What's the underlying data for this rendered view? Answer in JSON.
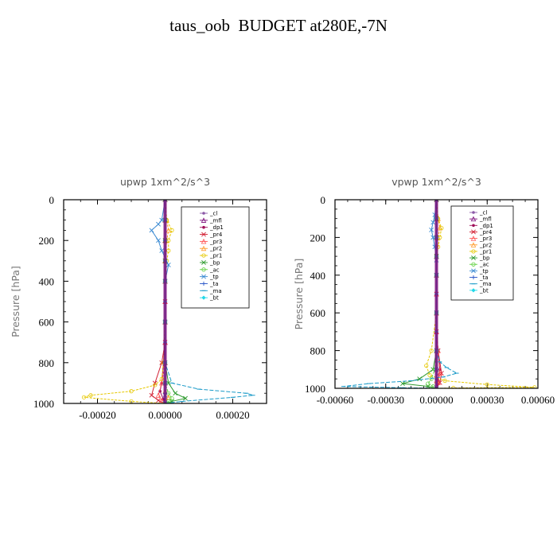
{
  "title": "taus_oob  BUDGET at280E,-7N",
  "chart_data": [
    {
      "type": "line",
      "title": "upwp   1xm^2/s^3",
      "ylabel": "Pressure [hPa]",
      "xlim": [
        -0.0003,
        0.0003
      ],
      "ylim": [
        1000,
        0
      ],
      "xticks": [
        -0.0002,
        0.0,
        0.0002
      ],
      "xtick_labels": [
        "-0.00020",
        "0.00000",
        "0.00020"
      ],
      "yticks": [
        0,
        200,
        400,
        600,
        800,
        1000
      ],
      "ytick_labels": [
        "0",
        "200",
        "400",
        "600",
        "800",
        "1000"
      ],
      "legend_position": "top-right",
      "grid": false,
      "series": [
        {
          "name": "_cl",
          "color": "#8c5aa8",
          "marker": "dot",
          "x": [
            0,
            0,
            0,
            0,
            0,
            0,
            0,
            0,
            0,
            0,
            0
          ],
          "y": [
            0,
            100,
            200,
            300,
            400,
            500,
            600,
            700,
            800,
            900,
            1000
          ]
        },
        {
          "name": "_mfl",
          "color": "#7a0a7a",
          "marker": "tri",
          "x": [
            0,
            0,
            0,
            0,
            0,
            0,
            0,
            0,
            0,
            0,
            0
          ],
          "y": [
            0,
            100,
            200,
            300,
            400,
            500,
            600,
            700,
            800,
            900,
            1000
          ]
        },
        {
          "name": "_dp1",
          "color": "#a0105a",
          "marker": "dot",
          "x": [
            0,
            0,
            0,
            0,
            0,
            0,
            0,
            0,
            -5e-06,
            -1e-05,
            -1.5e-05,
            -5e-06,
            0
          ],
          "y": [
            0,
            100,
            200,
            300,
            400,
            500,
            600,
            700,
            800,
            900,
            940,
            980,
            1000
          ]
        },
        {
          "name": "_pr4",
          "color": "#d21e32",
          "marker": "x",
          "x": [
            0,
            0,
            0,
            0,
            0,
            0,
            0,
            0,
            -1e-05,
            -3e-05,
            -4e-05,
            -2e-05,
            0
          ],
          "y": [
            0,
            100,
            200,
            300,
            400,
            500,
            600,
            700,
            800,
            900,
            960,
            985,
            1000
          ]
        },
        {
          "name": "_pr3",
          "color": "#ff5050",
          "marker": "tri",
          "x": [
            0,
            0,
            0,
            0,
            0,
            0,
            0,
            0,
            0,
            -1e-05,
            -2e-05,
            -1e-05,
            0
          ],
          "y": [
            0,
            100,
            200,
            300,
            400,
            500,
            600,
            700,
            800,
            900,
            960,
            985,
            1000
          ]
        },
        {
          "name": "_pr2",
          "color": "#ff9a28",
          "marker": "tri",
          "x": [
            0,
            5e-06,
            1e-05,
            5e-06,
            0,
            0,
            0,
            0,
            0,
            0,
            1e-05,
            0
          ],
          "y": [
            0,
            100,
            150,
            200,
            300,
            400,
            600,
            800,
            900,
            940,
            970,
            1000
          ]
        },
        {
          "name": "_pr1",
          "color": "#e6c800",
          "marker": "circ",
          "x": [
            0,
            5e-06,
            2e-05,
            1e-05,
            1e-05,
            5e-06,
            0,
            0,
            -5e-06,
            -1e-05,
            -3e-05,
            -0.0001,
            -0.00022,
            -0.00024,
            -0.0001,
            0
          ],
          "y": [
            0,
            100,
            150,
            200,
            250,
            300,
            400,
            600,
            800,
            880,
            910,
            940,
            960,
            970,
            990,
            1000
          ]
        },
        {
          "name": "_bp",
          "color": "#2e9a2e",
          "marker": "x",
          "x": [
            0,
            0,
            0,
            0,
            0,
            0,
            0,
            1e-05,
            3e-05,
            6e-05,
            2e-05,
            0
          ],
          "y": [
            0,
            100,
            200,
            300,
            400,
            600,
            800,
            900,
            950,
            975,
            990,
            1000
          ]
        },
        {
          "name": "_ac",
          "color": "#60d040",
          "marker": "circ",
          "x": [
            0,
            0,
            0,
            0,
            0,
            0,
            0,
            0,
            1e-05,
            2e-05,
            1e-05,
            0
          ],
          "y": [
            0,
            100,
            200,
            300,
            400,
            600,
            800,
            900,
            950,
            975,
            990,
            1000
          ]
        },
        {
          "name": "_tp",
          "color": "#3a8ad2",
          "marker": "x",
          "x": [
            0,
            -1e-05,
            -2e-05,
            -4e-05,
            -2e-05,
            -1e-05,
            1e-05,
            0,
            0,
            0,
            0,
            0,
            0
          ],
          "y": [
            0,
            100,
            120,
            150,
            200,
            250,
            320,
            400,
            600,
            800,
            900,
            960,
            1000
          ]
        },
        {
          "name": "_ta",
          "color": "#2a56c8",
          "marker": "plus",
          "x": [
            0,
            0,
            0,
            0,
            0,
            0,
            0,
            0,
            0,
            0,
            0,
            0
          ],
          "y": [
            0,
            100,
            200,
            300,
            400,
            500,
            600,
            700,
            800,
            900,
            950,
            1000
          ]
        },
        {
          "name": "_ma",
          "color": "#1a9ac8",
          "marker": "dash",
          "x": [
            0,
            0,
            0,
            0,
            0,
            0,
            0,
            2e-05,
            0.0001,
            0.00024,
            0.00026,
            0.0002,
            5e-05,
            0
          ],
          "y": [
            0,
            100,
            200,
            300,
            400,
            600,
            800,
            900,
            930,
            950,
            960,
            970,
            990,
            1000
          ]
        },
        {
          "name": "_bt",
          "color": "#22d8e8",
          "marker": "diamond",
          "x": [
            0,
            0,
            0,
            0,
            0,
            0,
            0,
            0,
            0,
            0,
            0
          ],
          "y": [
            0,
            100,
            200,
            300,
            400,
            500,
            600,
            700,
            800,
            900,
            1000
          ]
        }
      ]
    },
    {
      "type": "line",
      "title": "vpwp   1xm^2/s^3",
      "ylabel": "Pressure [hPa]",
      "xlim": [
        -0.0006,
        0.0006
      ],
      "ylim": [
        1000,
        0
      ],
      "xticks": [
        -0.0006,
        -0.0003,
        0.0,
        0.0003,
        0.0006
      ],
      "xtick_labels": [
        "-0.00060",
        "-0.00030",
        "0.00000",
        "0.00030",
        "0.00060"
      ],
      "yticks": [
        0,
        200,
        400,
        600,
        800,
        1000
      ],
      "ytick_labels": [
        "0",
        "200",
        "400",
        "600",
        "800",
        "1000"
      ],
      "legend_position": "top-right",
      "grid": false,
      "series": [
        {
          "name": "_cl",
          "color": "#8c5aa8",
          "marker": "dot",
          "x": [
            0,
            0,
            0,
            0,
            0,
            0,
            0,
            0,
            0,
            0,
            0
          ],
          "y": [
            0,
            100,
            200,
            300,
            400,
            500,
            600,
            700,
            800,
            900,
            1000
          ]
        },
        {
          "name": "_mfl",
          "color": "#7a0a7a",
          "marker": "tri",
          "x": [
            0,
            0,
            0,
            0,
            0,
            0,
            0,
            0,
            0,
            0,
            0
          ],
          "y": [
            0,
            100,
            200,
            300,
            400,
            500,
            600,
            700,
            800,
            900,
            1000
          ]
        },
        {
          "name": "_dp1",
          "color": "#a0105a",
          "marker": "dot",
          "x": [
            0,
            0,
            0,
            0,
            0,
            0,
            0,
            0,
            1e-05,
            2e-05,
            1e-05,
            0
          ],
          "y": [
            0,
            100,
            200,
            300,
            400,
            500,
            600,
            700,
            800,
            900,
            960,
            1000
          ]
        },
        {
          "name": "_pr4",
          "color": "#d21e32",
          "marker": "x",
          "x": [
            0,
            0,
            0,
            0,
            0,
            0,
            0,
            0,
            1e-05,
            3e-05,
            2e-05,
            0
          ],
          "y": [
            0,
            100,
            200,
            300,
            400,
            500,
            600,
            700,
            800,
            920,
            970,
            1000
          ]
        },
        {
          "name": "_pr3",
          "color": "#ff5050",
          "marker": "tri",
          "x": [
            0,
            0,
            0,
            0,
            0,
            0,
            0,
            0,
            1e-05,
            2e-05,
            1e-05,
            0
          ],
          "y": [
            0,
            100,
            200,
            300,
            400,
            500,
            600,
            700,
            800,
            920,
            970,
            1000
          ]
        },
        {
          "name": "_pr2",
          "color": "#ff9a28",
          "marker": "tri",
          "x": [
            0,
            1e-05,
            2e-05,
            1e-05,
            0,
            0,
            0,
            0,
            0,
            0,
            0
          ],
          "y": [
            0,
            100,
            150,
            200,
            300,
            400,
            600,
            800,
            900,
            960,
            1000
          ]
        },
        {
          "name": "_pr1",
          "color": "#e6c800",
          "marker": "circ",
          "x": [
            0,
            1e-05,
            3e-05,
            2e-05,
            1e-05,
            0,
            0,
            0,
            -3e-05,
            -6e-05,
            -4e-05,
            5e-05,
            0.0003,
            0.00058,
            0.0001,
            0
          ],
          "y": [
            0,
            100,
            150,
            200,
            250,
            300,
            400,
            600,
            800,
            880,
            930,
            960,
            980,
            995,
            998,
            1000
          ]
        },
        {
          "name": "_bp",
          "color": "#2e9a2e",
          "marker": "x",
          "x": [
            0,
            0,
            0,
            0,
            0,
            0,
            0,
            -2e-05,
            -0.0001,
            -0.0002,
            -5e-05,
            0
          ],
          "y": [
            0,
            100,
            200,
            300,
            400,
            600,
            800,
            900,
            950,
            975,
            990,
            1000
          ]
        },
        {
          "name": "_ac",
          "color": "#60d040",
          "marker": "circ",
          "x": [
            0,
            0,
            0,
            0,
            0,
            0,
            0,
            -1e-05,
            -3e-05,
            -5e-05,
            -2e-05,
            0
          ],
          "y": [
            0,
            100,
            200,
            300,
            400,
            600,
            800,
            900,
            950,
            975,
            990,
            1000
          ]
        },
        {
          "name": "_tp",
          "color": "#3a8ad2",
          "marker": "x",
          "x": [
            0,
            -1e-05,
            -2e-05,
            -3e-05,
            -2e-05,
            -1e-05,
            0,
            0,
            0,
            0,
            0,
            0
          ],
          "y": [
            0,
            80,
            120,
            160,
            200,
            250,
            320,
            400,
            600,
            800,
            900,
            1000
          ]
        },
        {
          "name": "_ta",
          "color": "#2a56c8",
          "marker": "plus",
          "x": [
            0,
            0,
            0,
            0,
            0,
            0,
            0,
            0,
            0,
            0,
            0,
            0
          ],
          "y": [
            0,
            100,
            200,
            300,
            400,
            500,
            600,
            700,
            800,
            900,
            950,
            1000
          ]
        },
        {
          "name": "_ma",
          "color": "#1a9ac8",
          "marker": "dash",
          "x": [
            0,
            0,
            0,
            0,
            0,
            0,
            0,
            2e-05,
            6e-05,
            0.00012,
            4e-05,
            -0.00015,
            -0.0004,
            -0.00055,
            -0.0002,
            0
          ],
          "y": [
            0,
            100,
            200,
            300,
            400,
            600,
            800,
            860,
            890,
            920,
            940,
            960,
            975,
            990,
            997,
            1000
          ]
        },
        {
          "name": "_bt",
          "color": "#22d8e8",
          "marker": "diamond",
          "x": [
            0,
            0,
            0,
            0,
            0,
            0,
            0,
            0,
            0,
            0,
            0
          ],
          "y": [
            0,
            100,
            200,
            300,
            400,
            500,
            600,
            700,
            800,
            900,
            1000
          ]
        }
      ]
    }
  ]
}
